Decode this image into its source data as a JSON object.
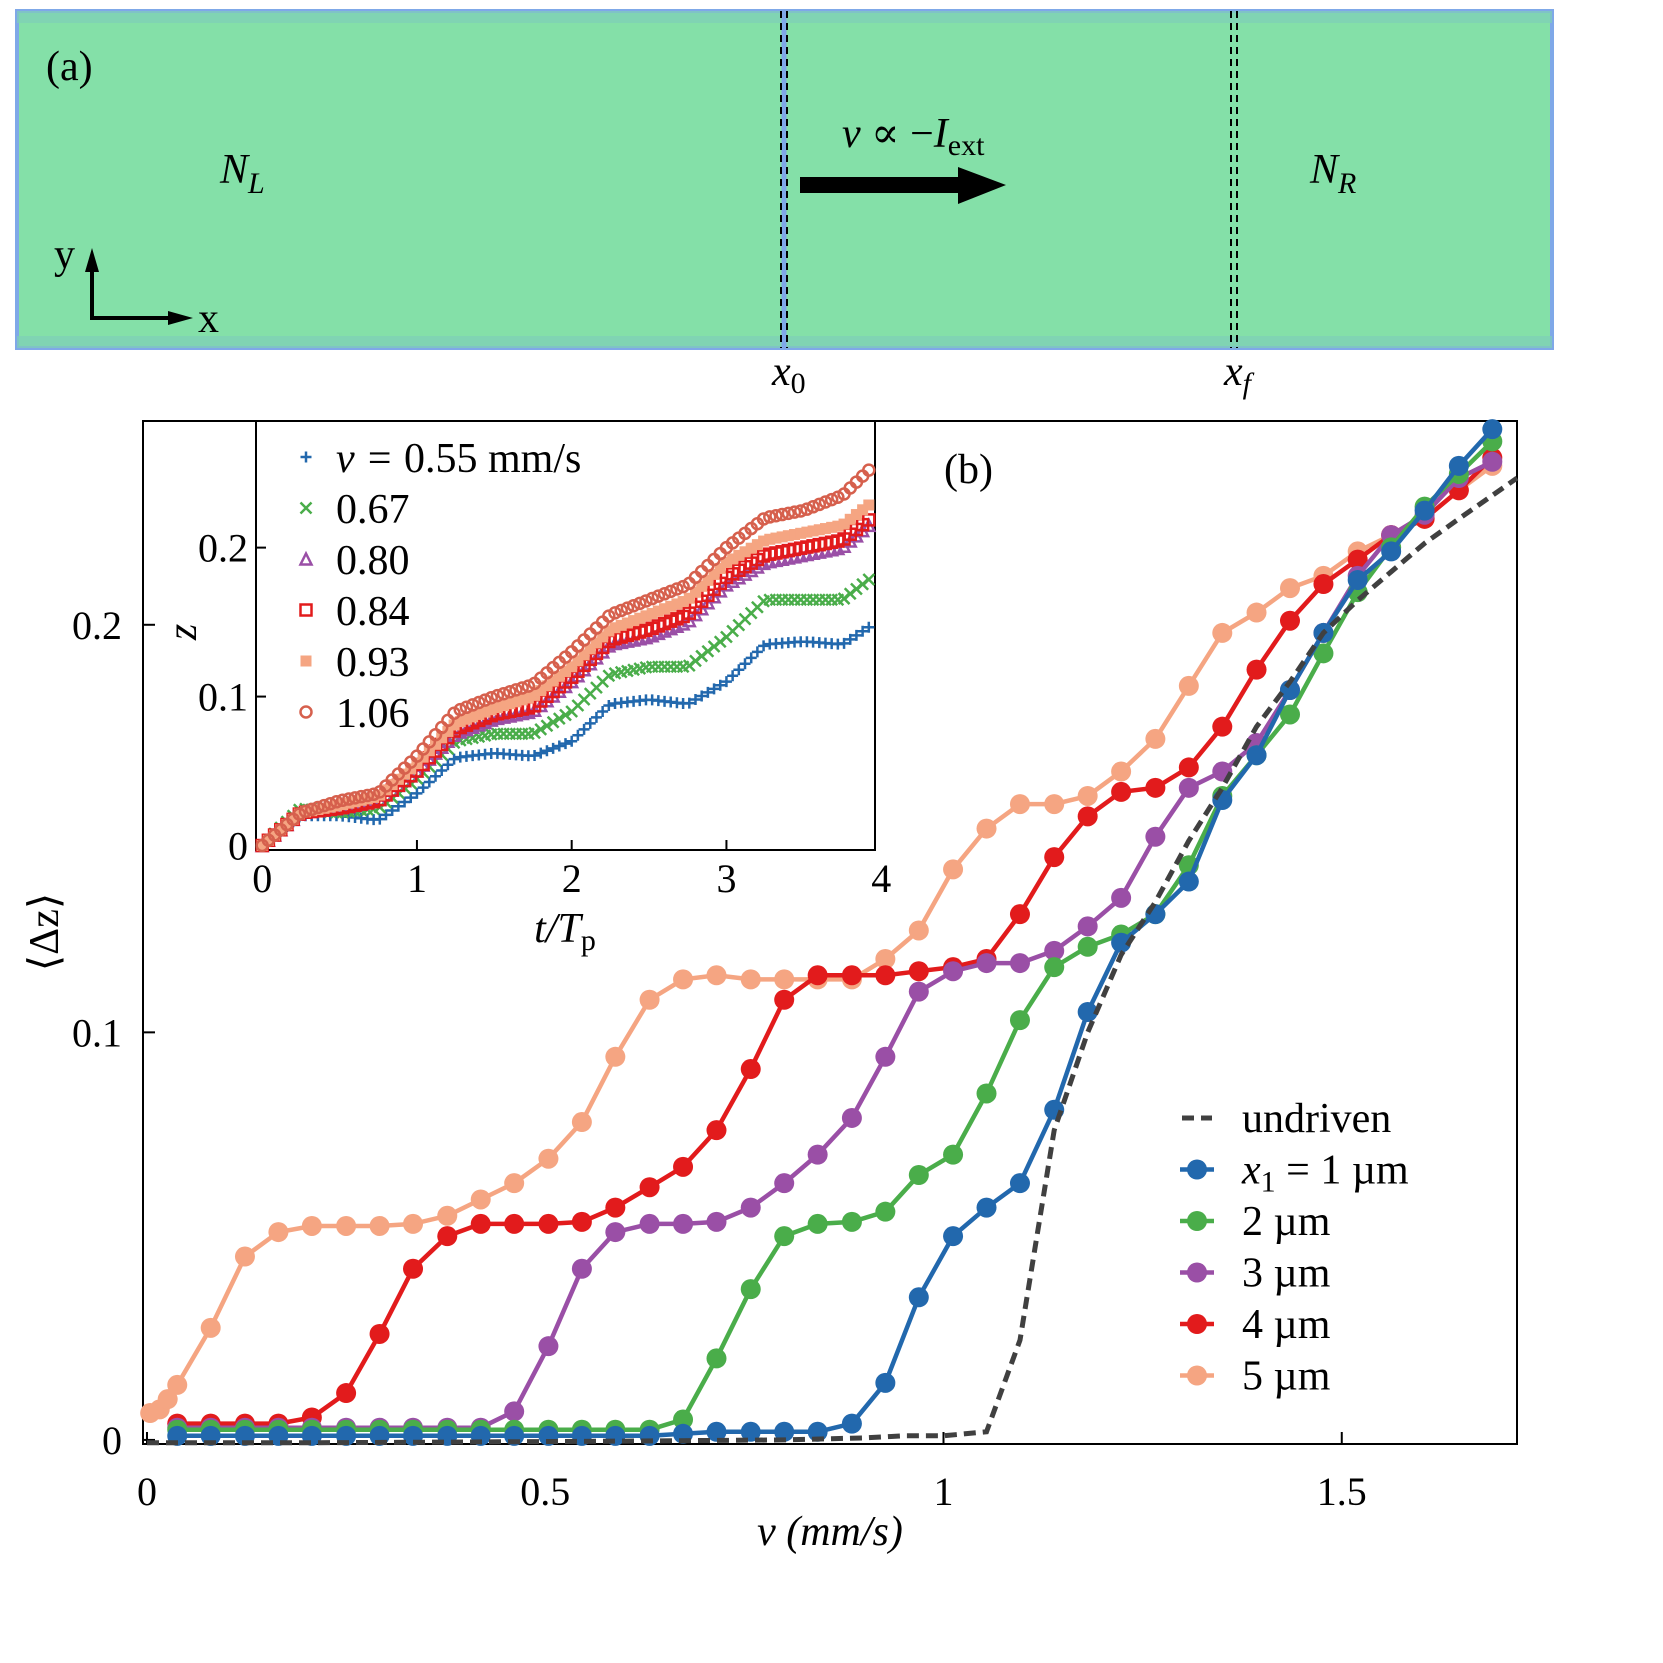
{
  "panel_a": {
    "label": "(a)",
    "left_region": {
      "symbol": "N",
      "sub": "L"
    },
    "right_region": {
      "symbol": "N",
      "sub": "R"
    },
    "arrow_label": {
      "lhs": "v",
      "rel": "∝",
      "minus": "−",
      "symbol": "I",
      "sub": "ext"
    },
    "axis_y": "y",
    "axis_x": "x",
    "boundary_start": {
      "symbol": "x",
      "sub": "0"
    },
    "boundary_end": {
      "symbol": "x",
      "sub": "f"
    },
    "colors": {
      "fill": "#84e0a8",
      "edge": "#7fa8e8"
    }
  },
  "chart_data": [
    {
      "type": "line",
      "panel_label": "(b)",
      "xlabel": "v (mm/s)",
      "ylabel": "⟨Δz⟩",
      "xlim": [
        -0.005,
        1.72
      ],
      "ylim": [
        -0.001,
        0.25
      ],
      "xticks": [
        "0",
        "0.5",
        "1",
        "1.5"
      ],
      "xtick_values": [
        0,
        0.5,
        1,
        1.5
      ],
      "yticks": [
        "0",
        "0.1",
        "0.2"
      ],
      "ytick_values": [
        0,
        0.1,
        0.2
      ],
      "grid": false,
      "legend_position": "bottom-right",
      "x": [
        0.038,
        0.08,
        0.123,
        0.165,
        0.207,
        0.25,
        0.292,
        0.334,
        0.377,
        0.419,
        0.461,
        0.504,
        0.546,
        0.588,
        0.631,
        0.673,
        0.715,
        0.758,
        0.8,
        0.842,
        0.885,
        0.927,
        0.969,
        1.012,
        1.054,
        1.096,
        1.139,
        1.181,
        1.223,
        1.266,
        1.308,
        1.35,
        1.393,
        1.435,
        1.477,
        1.52,
        1.562,
        1.604,
        1.647,
        1.689
      ],
      "series": [
        {
          "name": "undriven",
          "legend": "undriven",
          "color": "#404040",
          "style": "dashed",
          "x": [
            0,
            0.2,
            0.4,
            0.6,
            0.8,
            0.9,
            0.95,
            1.0,
            1.054,
            1.096,
            1.139,
            1.181,
            1.223,
            1.266,
            1.308,
            1.35,
            1.393,
            1.435,
            1.477,
            1.52,
            1.562,
            1.604,
            1.647,
            1.72
          ],
          "y": [
            -0.0007,
            -0.0007,
            -0.0005,
            -0.0003,
            0,
            0.0005,
            0.001,
            0.001,
            0.002,
            0.0245,
            0.076,
            0.1,
            0.119,
            0.132,
            0.147,
            0.16,
            0.175,
            0.186,
            0.198,
            0.206,
            0.213,
            0.22,
            0.226,
            0.236
          ]
        },
        {
          "name": "x1 = 1 µm",
          "legend": "x",
          "legend_sub": "1",
          "legend_rest": " = 1 µm",
          "color": "#2268ad",
          "style": "marker-line",
          "y": [
            0.001,
            0.001,
            0.001,
            0.001,
            0.001,
            0.001,
            0.001,
            0.001,
            0.001,
            0.001,
            0.001,
            0.001,
            0.001,
            0.001,
            0.001,
            0.0015,
            0.002,
            0.002,
            0.002,
            0.002,
            0.004,
            0.014,
            0.035,
            0.05,
            0.057,
            0.063,
            0.081,
            0.105,
            0.122,
            0.129,
            0.137,
            0.157,
            0.168,
            0.184,
            0.198,
            0.211,
            0.218,
            0.228,
            0.239,
            0.248
          ]
        },
        {
          "name": "2 µm",
          "legend": "2 µm",
          "color": "#4aad4a",
          "style": "marker-line",
          "y": [
            0.0025,
            0.0025,
            0.0025,
            0.0025,
            0.0025,
            0.0025,
            0.0025,
            0.0025,
            0.0025,
            0.0025,
            0.0025,
            0.0025,
            0.0025,
            0.0025,
            0.0025,
            0.005,
            0.02,
            0.037,
            0.05,
            0.053,
            0.0535,
            0.056,
            0.065,
            0.07,
            0.085,
            0.103,
            0.116,
            0.121,
            0.124,
            0.129,
            0.141,
            0.158,
            0.168,
            0.178,
            0.193,
            0.208,
            0.219,
            0.229,
            0.237,
            0.245
          ]
        },
        {
          "name": "3 µm",
          "legend": "3 µm",
          "color": "#9a4fa6",
          "style": "marker-line",
          "y": [
            0.003,
            0.003,
            0.003,
            0.003,
            0.003,
            0.003,
            0.003,
            0.003,
            0.003,
            0.003,
            0.007,
            0.023,
            0.042,
            0.051,
            0.053,
            0.053,
            0.0535,
            0.057,
            0.063,
            0.07,
            0.079,
            0.094,
            0.11,
            0.115,
            0.117,
            0.117,
            0.12,
            0.126,
            0.133,
            0.148,
            0.16,
            0.164,
            0.171,
            0.184,
            0.198,
            0.212,
            0.222,
            0.227,
            0.236,
            0.24
          ]
        },
        {
          "name": "4 µm",
          "legend": "4 µm",
          "color": "#e21b1c",
          "style": "marker-line",
          "y": [
            0.004,
            0.004,
            0.004,
            0.004,
            0.0055,
            0.0115,
            0.026,
            0.042,
            0.05,
            0.053,
            0.053,
            0.053,
            0.0535,
            0.057,
            0.062,
            0.067,
            0.076,
            0.091,
            0.108,
            0.114,
            0.114,
            0.114,
            0.115,
            0.116,
            0.118,
            0.129,
            0.143,
            0.153,
            0.159,
            0.16,
            0.165,
            0.175,
            0.189,
            0.201,
            0.21,
            0.216,
            0.222,
            0.226,
            0.233,
            0.241
          ]
        },
        {
          "name": "5 µm",
          "legend": "5 µm",
          "color": "#f5a582",
          "style": "marker-line",
          "x": [
            0.004,
            0.016,
            0.026,
            0.038,
            0.08,
            0.123,
            0.165,
            0.207,
            0.25,
            0.292,
            0.334,
            0.377,
            0.419,
            0.461,
            0.504,
            0.546,
            0.588,
            0.631,
            0.673,
            0.715,
            0.758,
            0.8,
            0.842,
            0.885,
            0.927,
            0.969,
            1.012,
            1.054,
            1.096,
            1.139,
            1.181,
            1.223,
            1.266,
            1.308,
            1.35,
            1.393,
            1.435,
            1.477,
            1.52,
            1.562,
            1.604,
            1.647,
            1.689
          ],
          "y": [
            0.0066,
            0.0075,
            0.01,
            0.0135,
            0.0275,
            0.045,
            0.051,
            0.0525,
            0.0525,
            0.0525,
            0.053,
            0.055,
            0.059,
            0.063,
            0.069,
            0.078,
            0.094,
            0.108,
            0.113,
            0.114,
            0.113,
            0.113,
            0.113,
            0.113,
            0.118,
            0.125,
            0.14,
            0.15,
            0.156,
            0.156,
            0.158,
            0.164,
            0.172,
            0.185,
            0.198,
            0.203,
            0.209,
            0.212,
            0.218,
            0.222,
            0.226,
            0.233,
            0.239
          ]
        }
      ]
    },
    {
      "type": "scatter",
      "role": "inset",
      "xlabel": "t/T",
      "xlabel_sub": "p",
      "ylabel": "z",
      "xlim": [
        -0.04,
        3.96
      ],
      "ylim": [
        -0.003,
        0.285
      ],
      "xticks": [
        "0",
        "1",
        "2",
        "3",
        "4"
      ],
      "xtick_values": [
        0,
        1,
        2,
        3,
        4
      ],
      "yticks": [
        "0",
        "0.1",
        "0.2"
      ],
      "ytick_values": [
        0,
        0.1,
        0.2
      ],
      "legend_position": "top-left",
      "legend_title_prefix": "v = ",
      "legend_unit": " mm/s",
      "x": [
        0,
        0.25,
        0.5,
        0.75,
        1,
        1.25,
        1.5,
        1.75,
        2,
        2.25,
        2.5,
        2.75,
        3,
        3.25,
        3.5,
        3.75,
        4
      ],
      "series": [
        {
          "name": "0.55",
          "marker": "plus",
          "color": "#2268ad",
          "y": [
            0,
            0.02,
            0.02,
            0.017,
            0.035,
            0.059,
            0.062,
            0.06,
            0.07,
            0.095,
            0.098,
            0.095,
            0.11,
            0.135,
            0.137,
            0.135,
            0.152
          ]
        },
        {
          "name": "0.67",
          "marker": "x",
          "color": "#4aad4a",
          "y": [
            0,
            0.025,
            0.022,
            0.025,
            0.045,
            0.07,
            0.075,
            0.075,
            0.09,
            0.115,
            0.12,
            0.12,
            0.14,
            0.165,
            0.165,
            0.165,
            0.185
          ]
        },
        {
          "name": "0.80",
          "marker": "triangle",
          "color": "#9a4fa6",
          "y": [
            0,
            0.022,
            0.025,
            0.03,
            0.05,
            0.075,
            0.085,
            0.09,
            0.11,
            0.135,
            0.14,
            0.15,
            0.175,
            0.19,
            0.195,
            0.2,
            0.222
          ]
        },
        {
          "name": "0.84",
          "marker": "square-open",
          "color": "#e21b1c",
          "y": [
            0,
            0.022,
            0.025,
            0.03,
            0.05,
            0.078,
            0.088,
            0.093,
            0.113,
            0.138,
            0.145,
            0.155,
            0.18,
            0.195,
            0.2,
            0.205,
            0.225
          ]
        },
        {
          "name": "0.93",
          "marker": "square",
          "color": "#f5a582",
          "y": [
            0,
            0.022,
            0.027,
            0.033,
            0.055,
            0.082,
            0.092,
            0.1,
            0.12,
            0.145,
            0.155,
            0.165,
            0.19,
            0.205,
            0.21,
            0.215,
            0.235
          ]
        },
        {
          "name": "1.06",
          "marker": "circle-open",
          "color": "#d6604d",
          "y": [
            0,
            0.022,
            0.03,
            0.035,
            0.06,
            0.09,
            0.1,
            0.108,
            0.13,
            0.155,
            0.165,
            0.175,
            0.2,
            0.22,
            0.225,
            0.235,
            0.26
          ]
        }
      ]
    }
  ]
}
